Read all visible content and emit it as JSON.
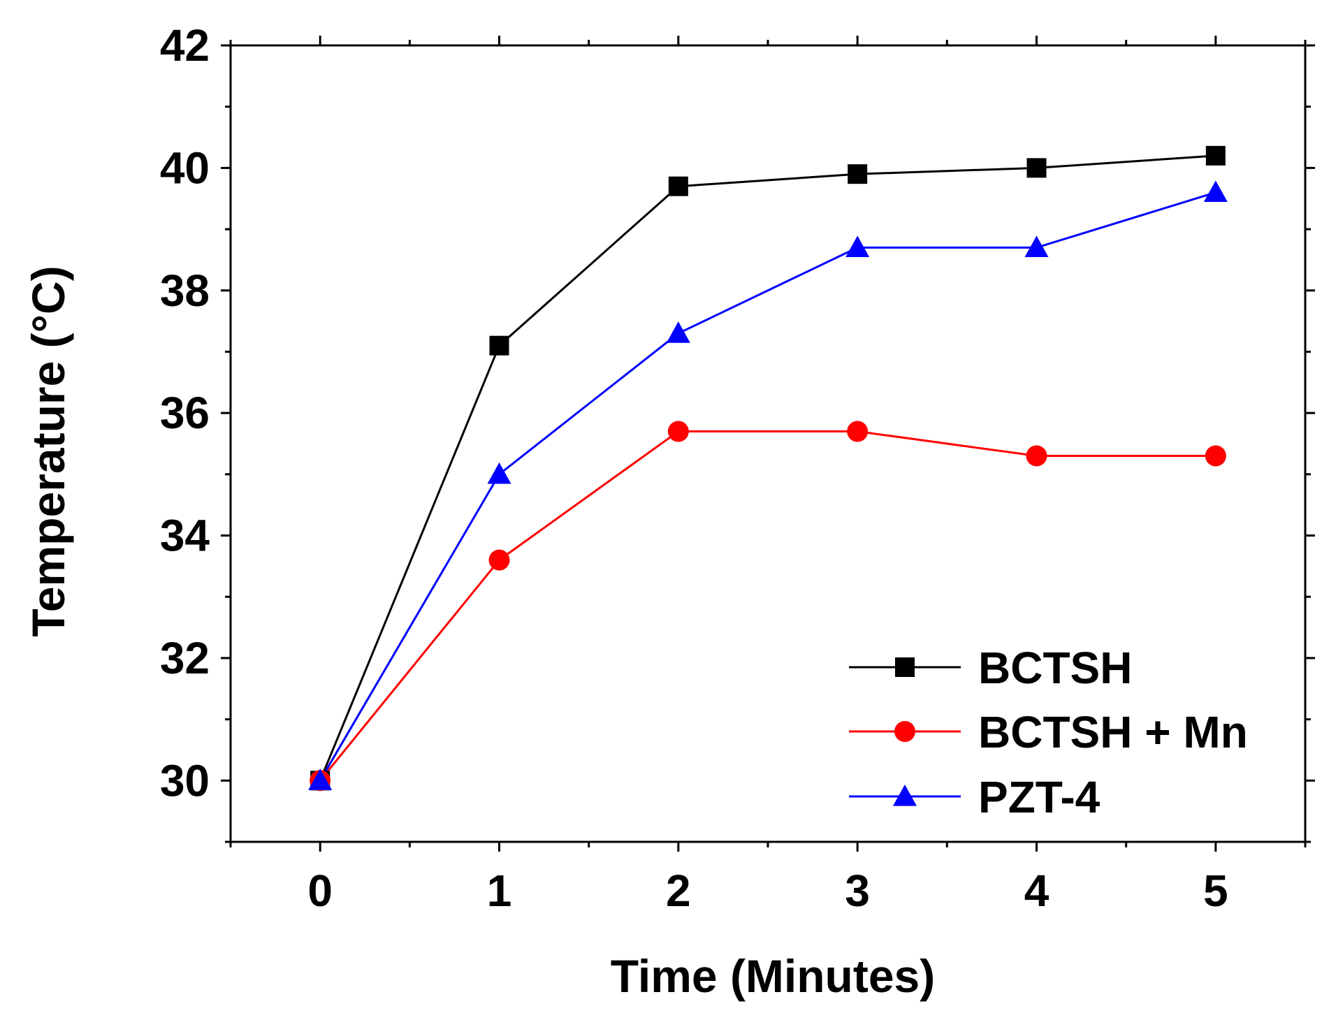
{
  "chart_data": {
    "type": "line",
    "title": "",
    "xlabel": "Time (Minutes)",
    "ylabel": "Temperature (°C)",
    "x": [
      0,
      1,
      2,
      3,
      4,
      5
    ],
    "x_ticks": [
      "0",
      "1",
      "2",
      "3",
      "4",
      "5"
    ],
    "y_ticks": [
      "30",
      "32",
      "34",
      "36",
      "38",
      "40",
      "42"
    ],
    "xlim": [
      -0.5,
      5.5
    ],
    "ylim": [
      29,
      42
    ],
    "grid": false,
    "legend_position": "bottom-right",
    "series": [
      {
        "name": "BCTSH",
        "color": "#000000",
        "marker": "square",
        "values": [
          30.0,
          37.1,
          39.7,
          39.9,
          40.0,
          40.2
        ]
      },
      {
        "name": "BCTSH + Mn",
        "color": "#ff0000",
        "marker": "circle",
        "values": [
          30.0,
          33.6,
          35.7,
          35.7,
          35.3,
          35.3
        ]
      },
      {
        "name": "PZT-4",
        "color": "#0000ff",
        "marker": "triangle",
        "values": [
          30.0,
          35.0,
          37.3,
          38.7,
          38.7,
          39.6
        ]
      }
    ]
  }
}
